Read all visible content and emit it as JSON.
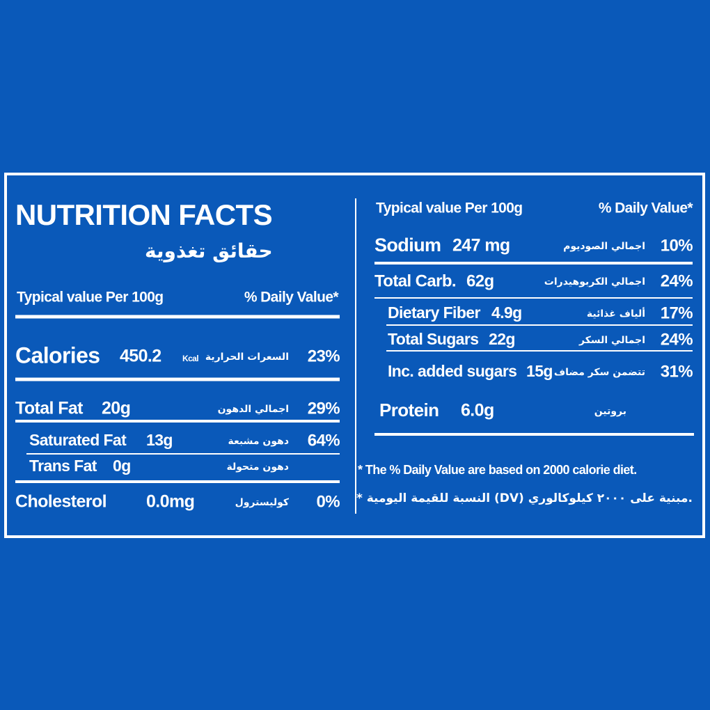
{
  "title": "NUTRITION FACTS",
  "title_ar": "حقائق تغذوية",
  "left": {
    "header": {
      "label": "Typical value Per 100g",
      "dv": "% Daily Value*"
    },
    "rows": [
      {
        "name": "Calories",
        "amount": "450.2",
        "unit": "Kcal",
        "arabic": "السعرات الحرارية",
        "dv": "23%"
      },
      {
        "name": "Total Fat",
        "amount": "20g",
        "arabic": "اجمالي الدهون",
        "dv": "29%"
      },
      {
        "name": "Saturated Fat",
        "amount": "13g",
        "arabic": "دهون مشبعة",
        "dv": "64%"
      },
      {
        "name": "Trans Fat",
        "amount": "0g",
        "arabic": "دهون متحولة"
      },
      {
        "name": "Cholesterol",
        "amount": "0.0mg",
        "arabic": "كوليسترول",
        "dv": "0%"
      }
    ]
  },
  "right": {
    "header": {
      "label": "Typical value Per 100g",
      "dv": "% Daily Value*"
    },
    "rows": [
      {
        "name": "Sodium",
        "amount": "247 mg",
        "arabic": "اجمالي الصوديوم",
        "dv": "10%"
      },
      {
        "name": "Total Carb.",
        "amount": "62g",
        "arabic": "اجمالي الكربوهيدرات",
        "dv": "24%"
      },
      {
        "name": "Dietary Fiber",
        "amount": "4.9g",
        "arabic": "ألياف غذائية",
        "dv": "17%"
      },
      {
        "name": "Total Sugars",
        "amount": "22g",
        "arabic": "اجمالي السكر",
        "dv": "24%"
      },
      {
        "name": "Inc. added sugars",
        "amount": "15g",
        "arabic": "تتضمن سكر مضاف",
        "dv": "31%"
      },
      {
        "name": "Protein",
        "amount": "6.0g",
        "arabic": "بروتين"
      }
    ],
    "footnote": "* The % Daily Value are based on 2000 calorie diet.",
    "footnote_ar": "* النسبة للقيمة اليومية (DV) مبنية على ٢٠٠٠ كيلوكالوري."
  }
}
